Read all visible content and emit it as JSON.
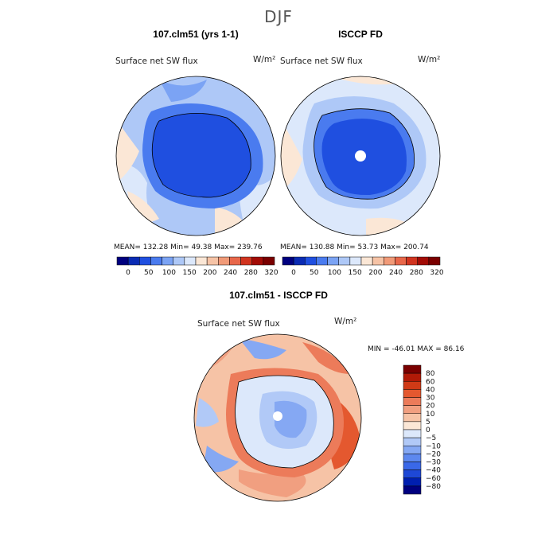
{
  "figure_title": "DJF",
  "colors": {
    "abs_levels": [
      "#00007f",
      "#0a2bb4",
      "#1f4fe0",
      "#4a7bef",
      "#7ba3f4",
      "#aec8f7",
      "#dce8fb",
      "#fbe7d6",
      "#f6c3a6",
      "#f19a78",
      "#e8674a",
      "#d1341f",
      "#a30c06",
      "#7a0000"
    ],
    "diff_levels": [
      "#00007f",
      "#001fb0",
      "#1e48d6",
      "#3a68e8",
      "#5d88ef",
      "#85a8f3",
      "#b1c9f7",
      "#dce8fb",
      "#fbe7d6",
      "#f6c3a6",
      "#f19f80",
      "#ec7b5a",
      "#e4582f",
      "#d03a16",
      "#b11a07",
      "#7a0000"
    ]
  },
  "chart_data": [
    {
      "type": "heatmap",
      "title": "107.clm51 (yrs 1-1)",
      "subtitle": "Surface net SW flux",
      "units": "W/m²",
      "stats": {
        "mean": 132.28,
        "min": 49.38,
        "max": 239.76
      },
      "stats_text": "MEAN= 132.28  Min=  49.38  Max= 239.76",
      "colorbar_ticks": [
        "0",
        "50",
        "100",
        "150",
        "200",
        "240",
        "280",
        "320"
      ]
    },
    {
      "type": "heatmap",
      "title": "ISCCP FD",
      "subtitle": "Surface net SW flux",
      "units": "W/m²",
      "stats": {
        "mean": 130.88,
        "min": 53.73,
        "max": 200.74
      },
      "stats_text": "MEAN= 130.88  Min=  53.73  Max= 200.74",
      "colorbar_ticks": [
        "0",
        "50",
        "100",
        "150",
        "200",
        "240",
        "280",
        "320"
      ]
    },
    {
      "type": "heatmap",
      "title": "107.clm51 - ISCCP FD",
      "subtitle": "Surface net SW flux",
      "units": "W/m²",
      "stats": {
        "min": -46.01,
        "max": 86.16
      },
      "stats_text": "MIN = -46.01 MAX =  86.16",
      "colorbar_ticks": [
        "80",
        "60",
        "40",
        "30",
        "20",
        "10",
        "5",
        "0",
        "−5",
        "−10",
        "−20",
        "−30",
        "−40",
        "−60",
        "−80"
      ]
    }
  ]
}
